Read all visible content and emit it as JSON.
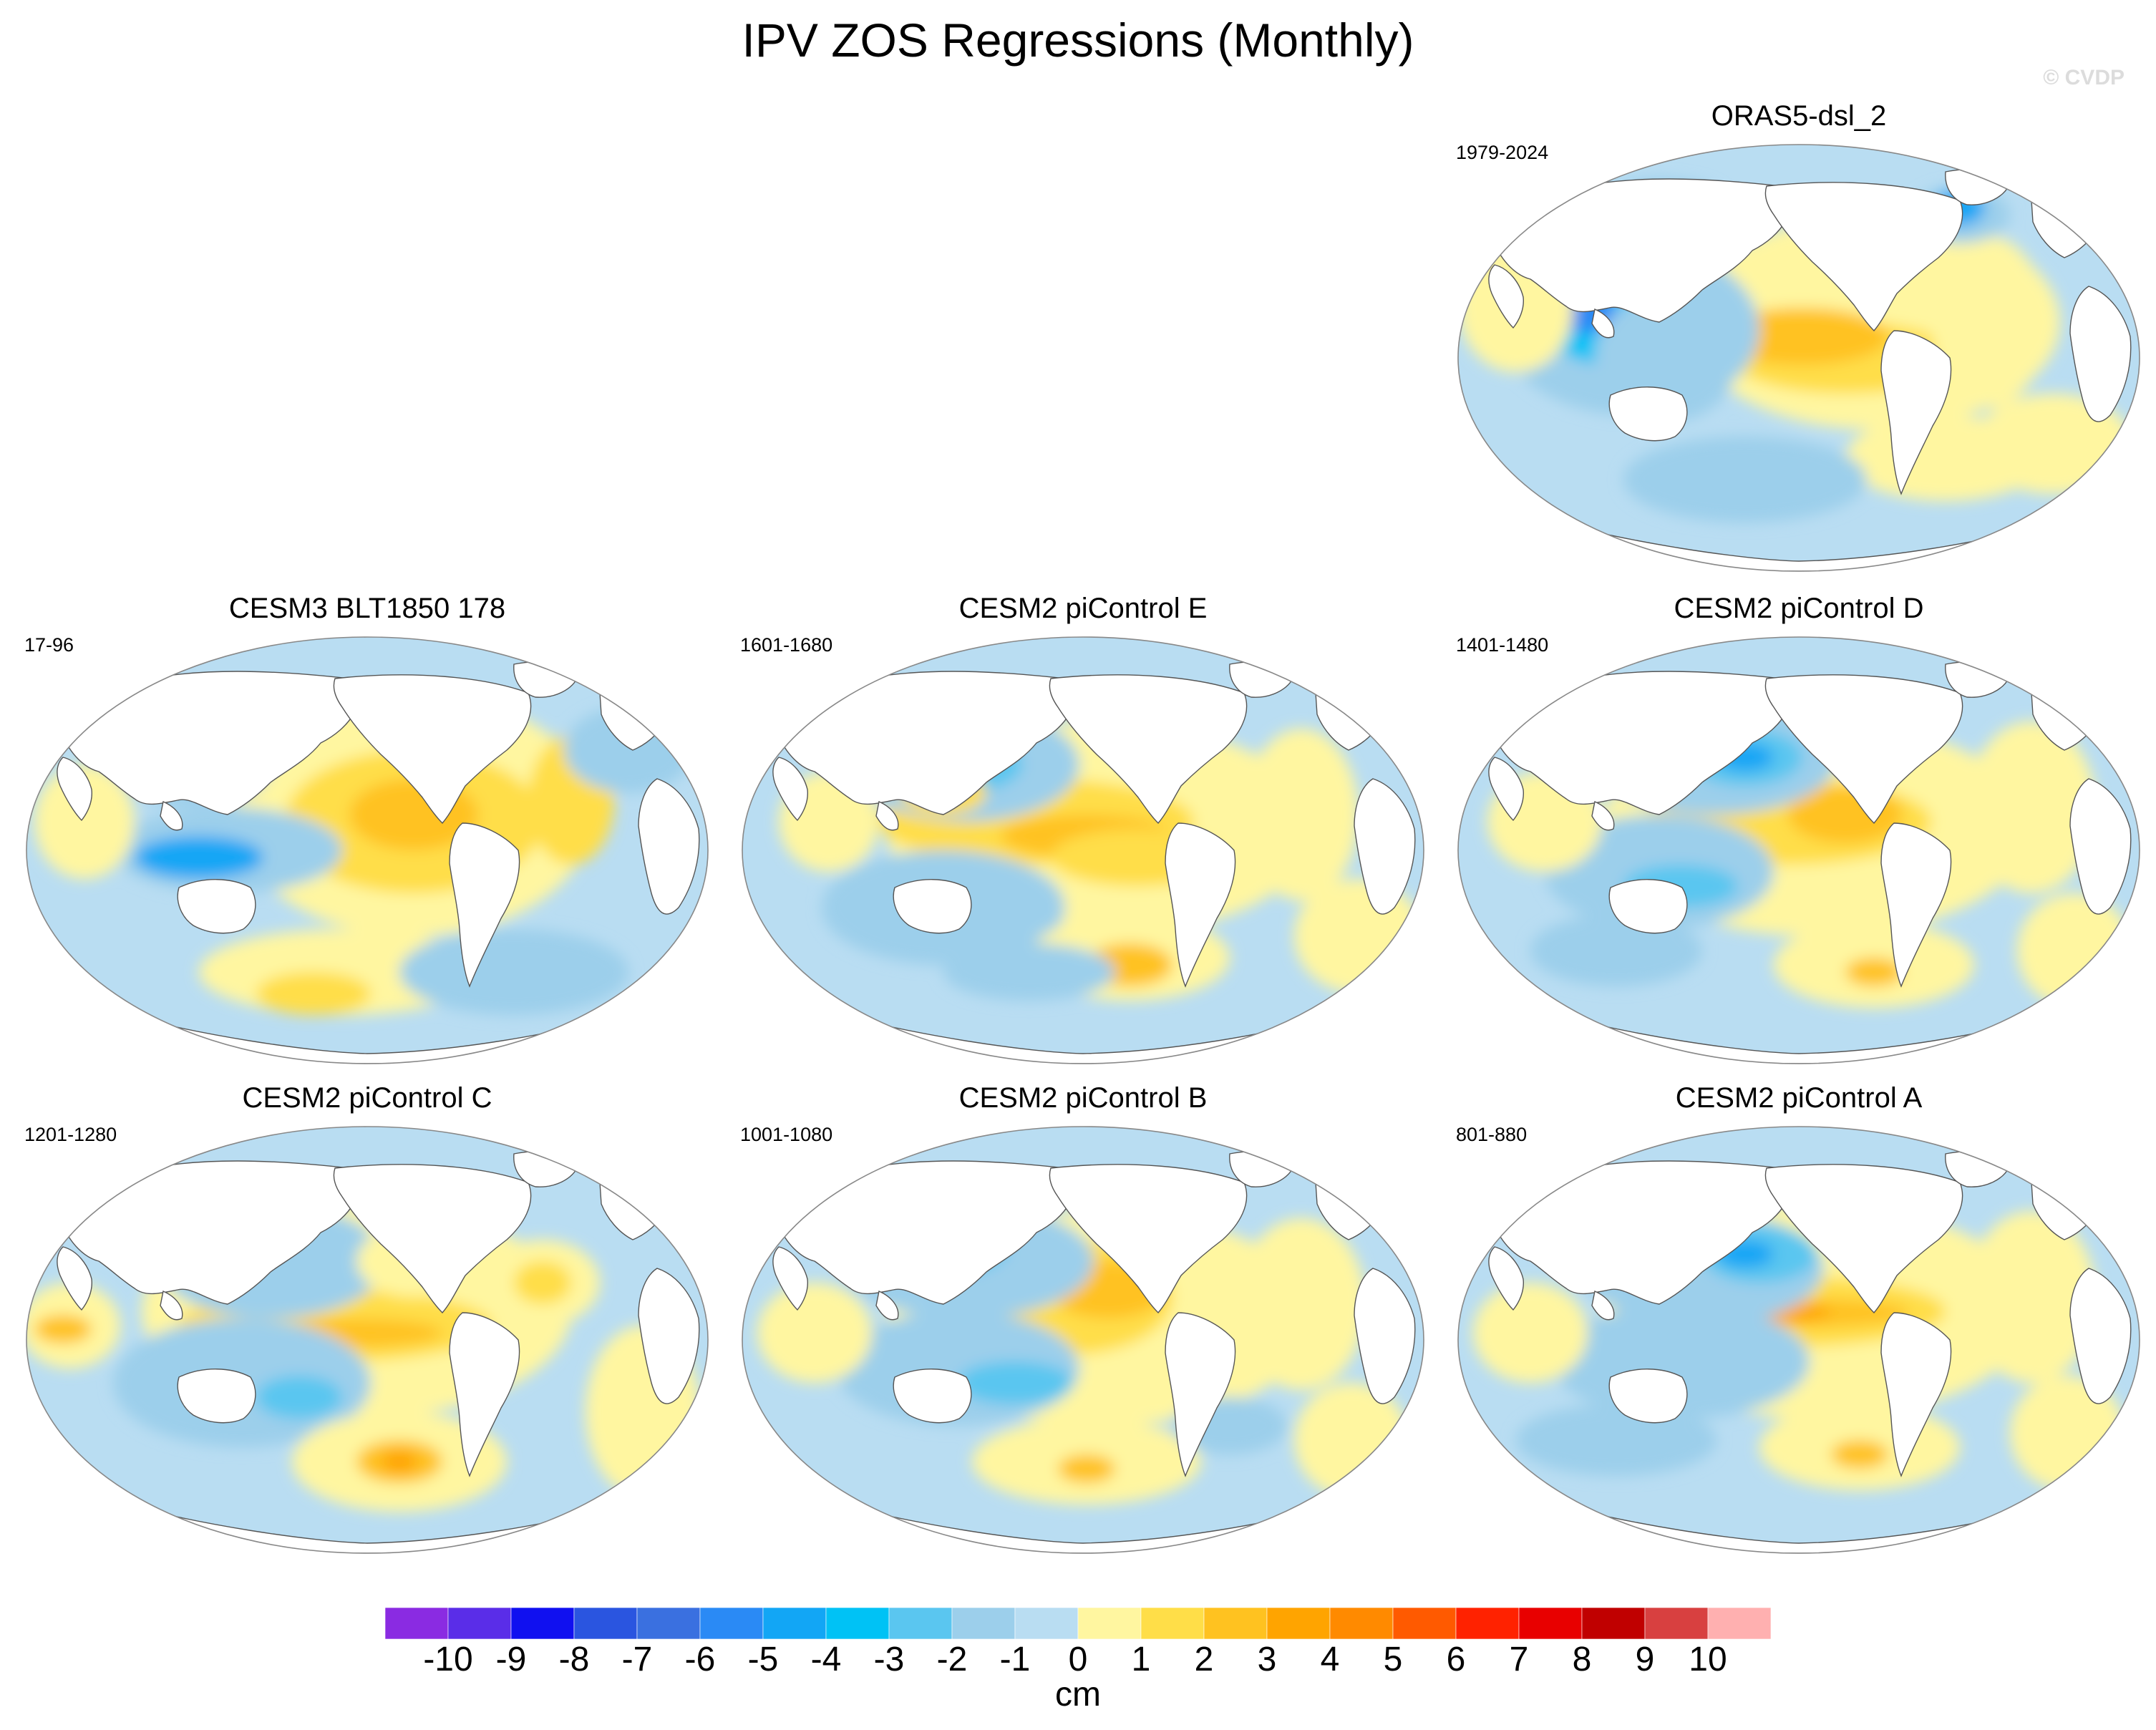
{
  "title": "IPV ZOS Regressions (Monthly)",
  "watermark": "© CVDP",
  "land_color": "#ffffff",
  "ocean_base_color": "#b9ddf2",
  "panels": [
    {
      "id": "orass5",
      "title": "ORAS5-dsl_2",
      "years": "1979-2024"
    },
    {
      "id": "cesm3",
      "title": "CESM3 BLT1850 178",
      "years": "17-96"
    },
    {
      "id": "pic-e",
      "title": "CESM2 piControl E",
      "years": "1601-1680"
    },
    {
      "id": "pic-d",
      "title": "CESM2 piControl D",
      "years": "1401-1480"
    },
    {
      "id": "pic-c",
      "title": "CESM2 piControl C",
      "years": "1201-1280"
    },
    {
      "id": "pic-b",
      "title": "CESM2 piControl B",
      "years": "1001-1080"
    },
    {
      "id": "pic-a",
      "title": "CESM2 piControl A",
      "years": "801-880"
    }
  ],
  "chart_data": {
    "type": "heatmap",
    "title": "IPV ZOS Regressions (Monthly)",
    "projection": "Robinson (global, centered on Pacific)",
    "units": "cm",
    "colorbar": {
      "levels": [
        -10,
        -9,
        -8,
        -7,
        -6,
        -5,
        -4,
        -3,
        -2,
        -1,
        0,
        1,
        2,
        3,
        4,
        5,
        6,
        7,
        8,
        9,
        10
      ],
      "colors": [
        "#8a2be2",
        "#5a2de8",
        "#1010f0",
        "#2a55e0",
        "#3a70e0",
        "#2a8af5",
        "#12a6f5",
        "#00c2f5",
        "#5ac6f0",
        "#9ccfeb",
        "#b9ddf2",
        "#fff6a0",
        "#ffde48",
        "#ffc220",
        "#ffa400",
        "#ff8a00",
        "#ff5a00",
        "#ff2200",
        "#e80000",
        "#c00000",
        "#d84040",
        "#ffb0b0"
      ]
    },
    "panels": [
      {
        "title": "ORAS5-dsl_2",
        "period": "1979-2024"
      },
      {
        "title": "CESM3 BLT1850 178",
        "period": "17-96"
      },
      {
        "title": "CESM2 piControl E",
        "period": "1601-1680"
      },
      {
        "title": "CESM2 piControl D",
        "period": "1401-1480"
      },
      {
        "title": "CESM2 piControl C",
        "period": "1201-1280"
      },
      {
        "title": "CESM2 piControl B",
        "period": "1001-1080"
      },
      {
        "title": "CESM2 piControl A",
        "period": "801-880"
      }
    ]
  }
}
